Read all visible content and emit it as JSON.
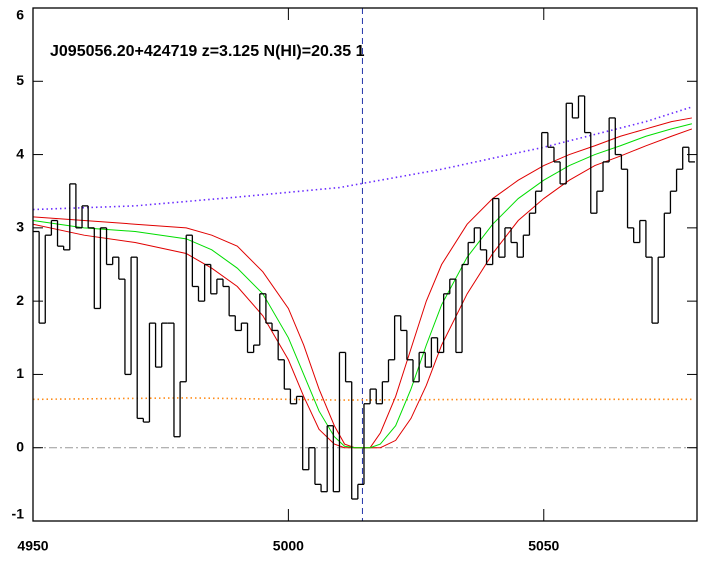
{
  "chart_data": {
    "type": "line",
    "title": "J095056.20+424719 z=3.125 N(HI)=20.35 1",
    "xlim": [
      4950,
      5080
    ],
    "ylim": [
      -1,
      6
    ],
    "xticks": [
      4950,
      5000,
      5050
    ],
    "yticks": [
      -1,
      0,
      1,
      2,
      3,
      4,
      5,
      6
    ],
    "hline": 0,
    "vline": 5014.5,
    "spectrum": {
      "color": "#000000",
      "bins": [
        4950,
        4951.2,
        4952.4,
        4953.6,
        4954.8,
        4956,
        4957.2,
        4958.4,
        4959.6,
        4960.8,
        4962,
        4963.2,
        4964.4,
        4965.6,
        4966.8,
        4968,
        4969.2,
        4970.4,
        4971.6,
        4972.8,
        4974,
        4975.2,
        4976.4,
        4977.6,
        4978.8,
        4980,
        4981.2,
        4982.4,
        4983.6,
        4984.8,
        4986,
        4987.2,
        4988.4,
        4989.6,
        4990.8,
        4992,
        4993.2,
        4994.4,
        4995.6,
        4996.8,
        4998,
        4999.2,
        5000.4,
        5001.6,
        5002.8,
        5004,
        5005.2,
        5006.4,
        5007.6,
        5008.8,
        5010,
        5011.2,
        5012.4,
        5013.6,
        5014.8,
        5016,
        5017.2,
        5018.4,
        5019.6,
        5020.8,
        5022,
        5023.2,
        5024.4,
        5025.6,
        5026.8,
        5028,
        5029.2,
        5030.4,
        5031.6,
        5032.8,
        5034,
        5035.2,
        5036.4,
        5037.6,
        5038.8,
        5040,
        5041.2,
        5042.4,
        5043.6,
        5044.8,
        5046,
        5047.2,
        5048.4,
        5049.6,
        5050.8,
        5052,
        5053.2,
        5054.4,
        5055.6,
        5056.8,
        5058,
        5059.2,
        5060.4,
        5061.6,
        5062.8,
        5064,
        5065.2,
        5066.4,
        5067.6,
        5068.8,
        5070,
        5071.2,
        5072.4,
        5073.6,
        5074.8,
        5076,
        5077.2,
        5078.4,
        5079.6
      ],
      "values": [
        2.95,
        1.7,
        2.9,
        3.1,
        2.75,
        2.7,
        3.6,
        3.0,
        3.3,
        3.0,
        1.9,
        3.0,
        2.5,
        2.6,
        2.3,
        1.0,
        2.6,
        0.4,
        0.35,
        1.7,
        1.1,
        1.7,
        1.7,
        0.15,
        0.9,
        2.9,
        2.2,
        2.0,
        2.5,
        2.1,
        2.3,
        2.2,
        1.8,
        1.6,
        1.7,
        1.3,
        1.4,
        2.1,
        1.7,
        1.6,
        1.2,
        0.8,
        0.6,
        0.7,
        -0.3,
        0.0,
        -0.5,
        -0.6,
        0.3,
        -0.6,
        1.3,
        0.9,
        -0.7,
        -0.5,
        0.6,
        0.8,
        0.6,
        0.9,
        1.2,
        1.8,
        1.6,
        1.2,
        0.9,
        1.3,
        1.1,
        1.5,
        1.3,
        2.1,
        2.3,
        1.3,
        2.5,
        2.8,
        3.0,
        2.7,
        2.5,
        3.4,
        2.6,
        3.0,
        2.8,
        2.6,
        2.9,
        3.2,
        3.5,
        4.3,
        4.1,
        3.9,
        3.6,
        4.7,
        4.5,
        4.8,
        4.3,
        3.2,
        3.5,
        3.9,
        4.5,
        4.0,
        3.8,
        3.0,
        2.8,
        3.1,
        2.6,
        1.7,
        2.6,
        3.2,
        3.5,
        3.8,
        4.1,
        3.9
      ]
    },
    "series": [
      {
        "color": "#6a2cff",
        "dash": "dot",
        "x": [
          4950,
          4970,
          4990,
          5010,
          5030,
          5050,
          5070,
          5079
        ],
        "values": [
          3.25,
          3.3,
          3.42,
          3.55,
          3.8,
          4.1,
          4.45,
          4.65
        ]
      },
      {
        "color": "#ff8c1a",
        "dash": "dot",
        "x": [
          4950,
          4980,
          5010,
          5040,
          5079
        ],
        "values": [
          0.66,
          0.68,
          0.65,
          0.66,
          0.66
        ]
      },
      {
        "color": "#e00000",
        "dash": "solid",
        "x": [
          4950,
          4960,
          4970,
          4980,
          4985,
          4990,
          4995,
          5000,
          5003,
          5006,
          5009,
          5011,
          5013,
          5016,
          5018,
          5021,
          5024,
          5027,
          5030,
          5035,
          5040,
          5045,
          5050,
          5055,
          5060,
          5065,
          5070,
          5075,
          5079
        ],
        "values": [
          3.15,
          3.1,
          3.05,
          3.0,
          2.9,
          2.75,
          2.4,
          1.9,
          1.4,
          0.8,
          0.3,
          0.05,
          0,
          0,
          0.2,
          0.7,
          1.35,
          2.0,
          2.5,
          3.05,
          3.4,
          3.65,
          3.85,
          4.0,
          4.12,
          4.25,
          4.35,
          4.45,
          4.5
        ]
      },
      {
        "color": "#e00000",
        "dash": "solid",
        "x": [
          4950,
          4960,
          4970,
          4980,
          4985,
          4990,
          4995,
          5000,
          5003,
          5006,
          5009,
          5011,
          5013,
          5016,
          5018,
          5021,
          5024,
          5027,
          5030,
          5035,
          5040,
          5045,
          5050,
          5055,
          5060,
          5065,
          5070,
          5075,
          5079
        ],
        "values": [
          3.05,
          2.9,
          2.8,
          2.65,
          2.45,
          2.2,
          1.8,
          1.2,
          0.7,
          0.25,
          0.05,
          0,
          0,
          0,
          0,
          0.1,
          0.4,
          0.85,
          1.4,
          2.1,
          2.65,
          3.1,
          3.4,
          3.65,
          3.85,
          3.98,
          4.12,
          4.25,
          4.35
        ]
      },
      {
        "color": "#00dd00",
        "dash": "solid",
        "x": [
          4950,
          4960,
          4970,
          4980,
          4985,
          4990,
          4995,
          5000,
          5003,
          5006,
          5009,
          5011,
          5013,
          5016,
          5018,
          5021,
          5024,
          5027,
          5030,
          5035,
          5040,
          5045,
          5050,
          5055,
          5060,
          5065,
          5070,
          5075,
          5079
        ],
        "values": [
          3.1,
          3.0,
          2.95,
          2.85,
          2.7,
          2.45,
          2.1,
          1.5,
          1.0,
          0.5,
          0.15,
          0.02,
          0,
          0,
          0.05,
          0.3,
          0.8,
          1.4,
          1.95,
          2.6,
          3.05,
          3.4,
          3.65,
          3.85,
          4.0,
          4.12,
          4.25,
          4.35,
          4.42
        ]
      }
    ]
  }
}
